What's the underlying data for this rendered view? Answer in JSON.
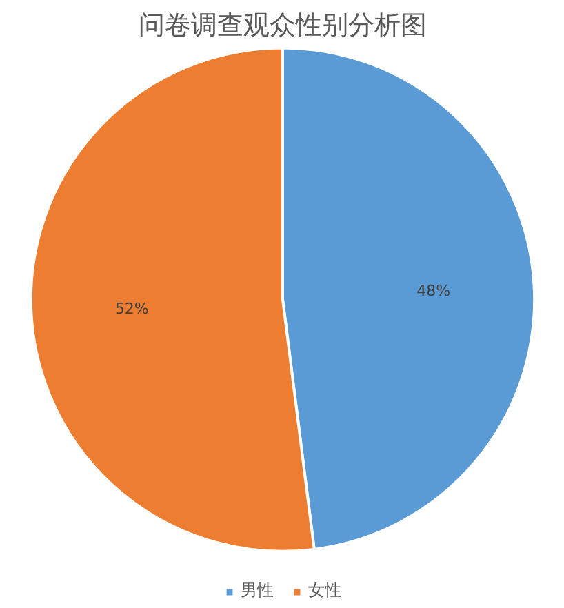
{
  "chart_data": {
    "type": "pie",
    "title": "问卷调查观众性别分析图",
    "categories": [
      "男性",
      "女性"
    ],
    "values": [
      48,
      52
    ],
    "colors": [
      "#5b9bd5",
      "#ed7d31"
    ],
    "value_labels": [
      "48%",
      "52%"
    ],
    "legend": "bottom"
  }
}
